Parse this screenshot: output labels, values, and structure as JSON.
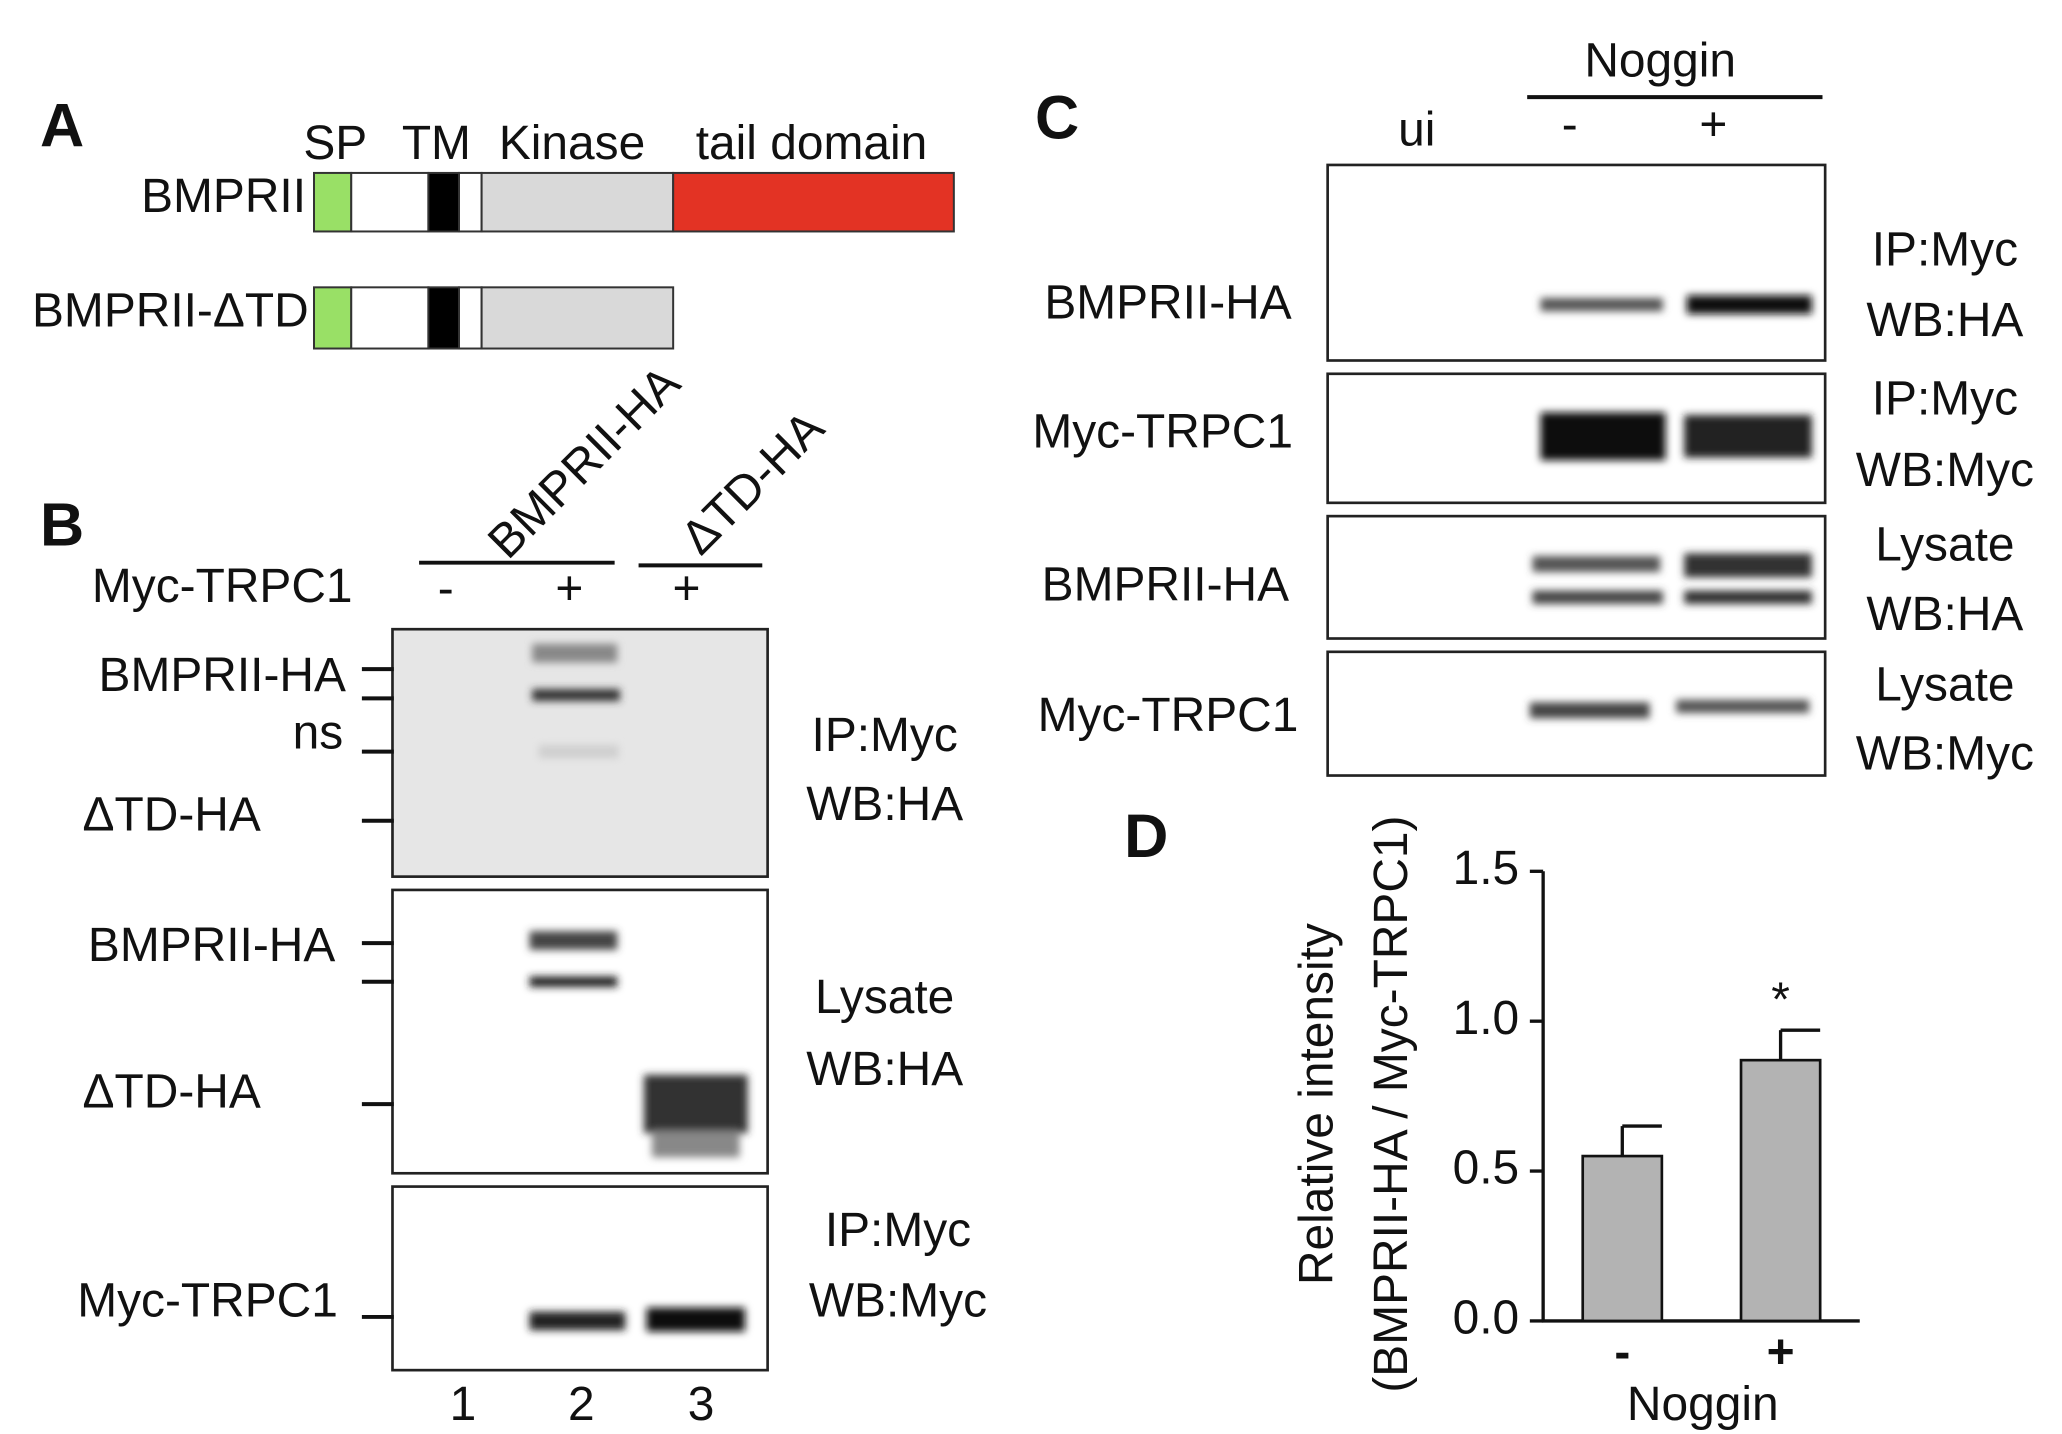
{
  "panel_a": {
    "letter": "A",
    "domains": [
      "SP",
      "TM",
      "Kinase",
      "tail domain"
    ],
    "constructs": [
      "BMPRII",
      "BMPRII-ΔTD"
    ]
  },
  "panel_b": {
    "letter": "B",
    "constructs": [
      "BMPRII-HA",
      "ΔTD-HA"
    ],
    "treatment": {
      "label": "Myc-TRPC1",
      "lanes": [
        "-",
        "+",
        "+"
      ]
    },
    "blots": [
      {
        "markers": [
          "BMPRII-HA",
          "ns",
          "ΔTD-HA"
        ],
        "conditions": [
          "IP:Myc",
          "WB:HA"
        ]
      },
      {
        "markers": [
          "BMPRII-HA",
          "ΔTD-HA"
        ],
        "conditions": [
          "Lysate",
          "WB:HA"
        ]
      },
      {
        "markers": [
          "Myc-TRPC1"
        ],
        "conditions": [
          "IP:Myc",
          "WB:Myc"
        ]
      }
    ],
    "lane_numbers": [
      "1",
      "2",
      "3"
    ]
  },
  "panel_c": {
    "letter": "C",
    "group": "Noggin",
    "lanes": [
      "ui",
      "-",
      "+"
    ],
    "blots": [
      {
        "protein": "BMPRII-HA",
        "conditions": [
          "IP:Myc",
          "WB:HA"
        ]
      },
      {
        "protein": "Myc-TRPC1",
        "conditions": [
          "IP:Myc",
          "WB:Myc"
        ]
      },
      {
        "protein": "BMPRII-HA",
        "conditions": [
          "Lysate",
          "WB:HA"
        ]
      },
      {
        "protein": "Myc-TRPC1",
        "conditions": [
          "Lysate",
          "WB:Myc"
        ]
      }
    ]
  },
  "panel_d": {
    "letter": "D"
  },
  "chart_data": {
    "type": "bar",
    "categories": [
      "-",
      "+"
    ],
    "values": [
      0.55,
      0.87
    ],
    "errors": [
      0.1,
      0.1
    ],
    "color": "#b3b3b3",
    "xlabel": "Noggin",
    "ylabel": [
      "Relative intensity",
      "(BMPRII-HA / Myc-TRPC1)"
    ],
    "annotations": [
      null,
      "*"
    ],
    "ylim": [
      0,
      1.5
    ],
    "yticks": [
      {
        "value": 0,
        "label": "0.0"
      },
      {
        "value": 0.5,
        "label": "0.5"
      },
      {
        "value": 1,
        "label": "1.0"
      },
      {
        "value": 1.5,
        "label": "1.5"
      }
    ]
  }
}
